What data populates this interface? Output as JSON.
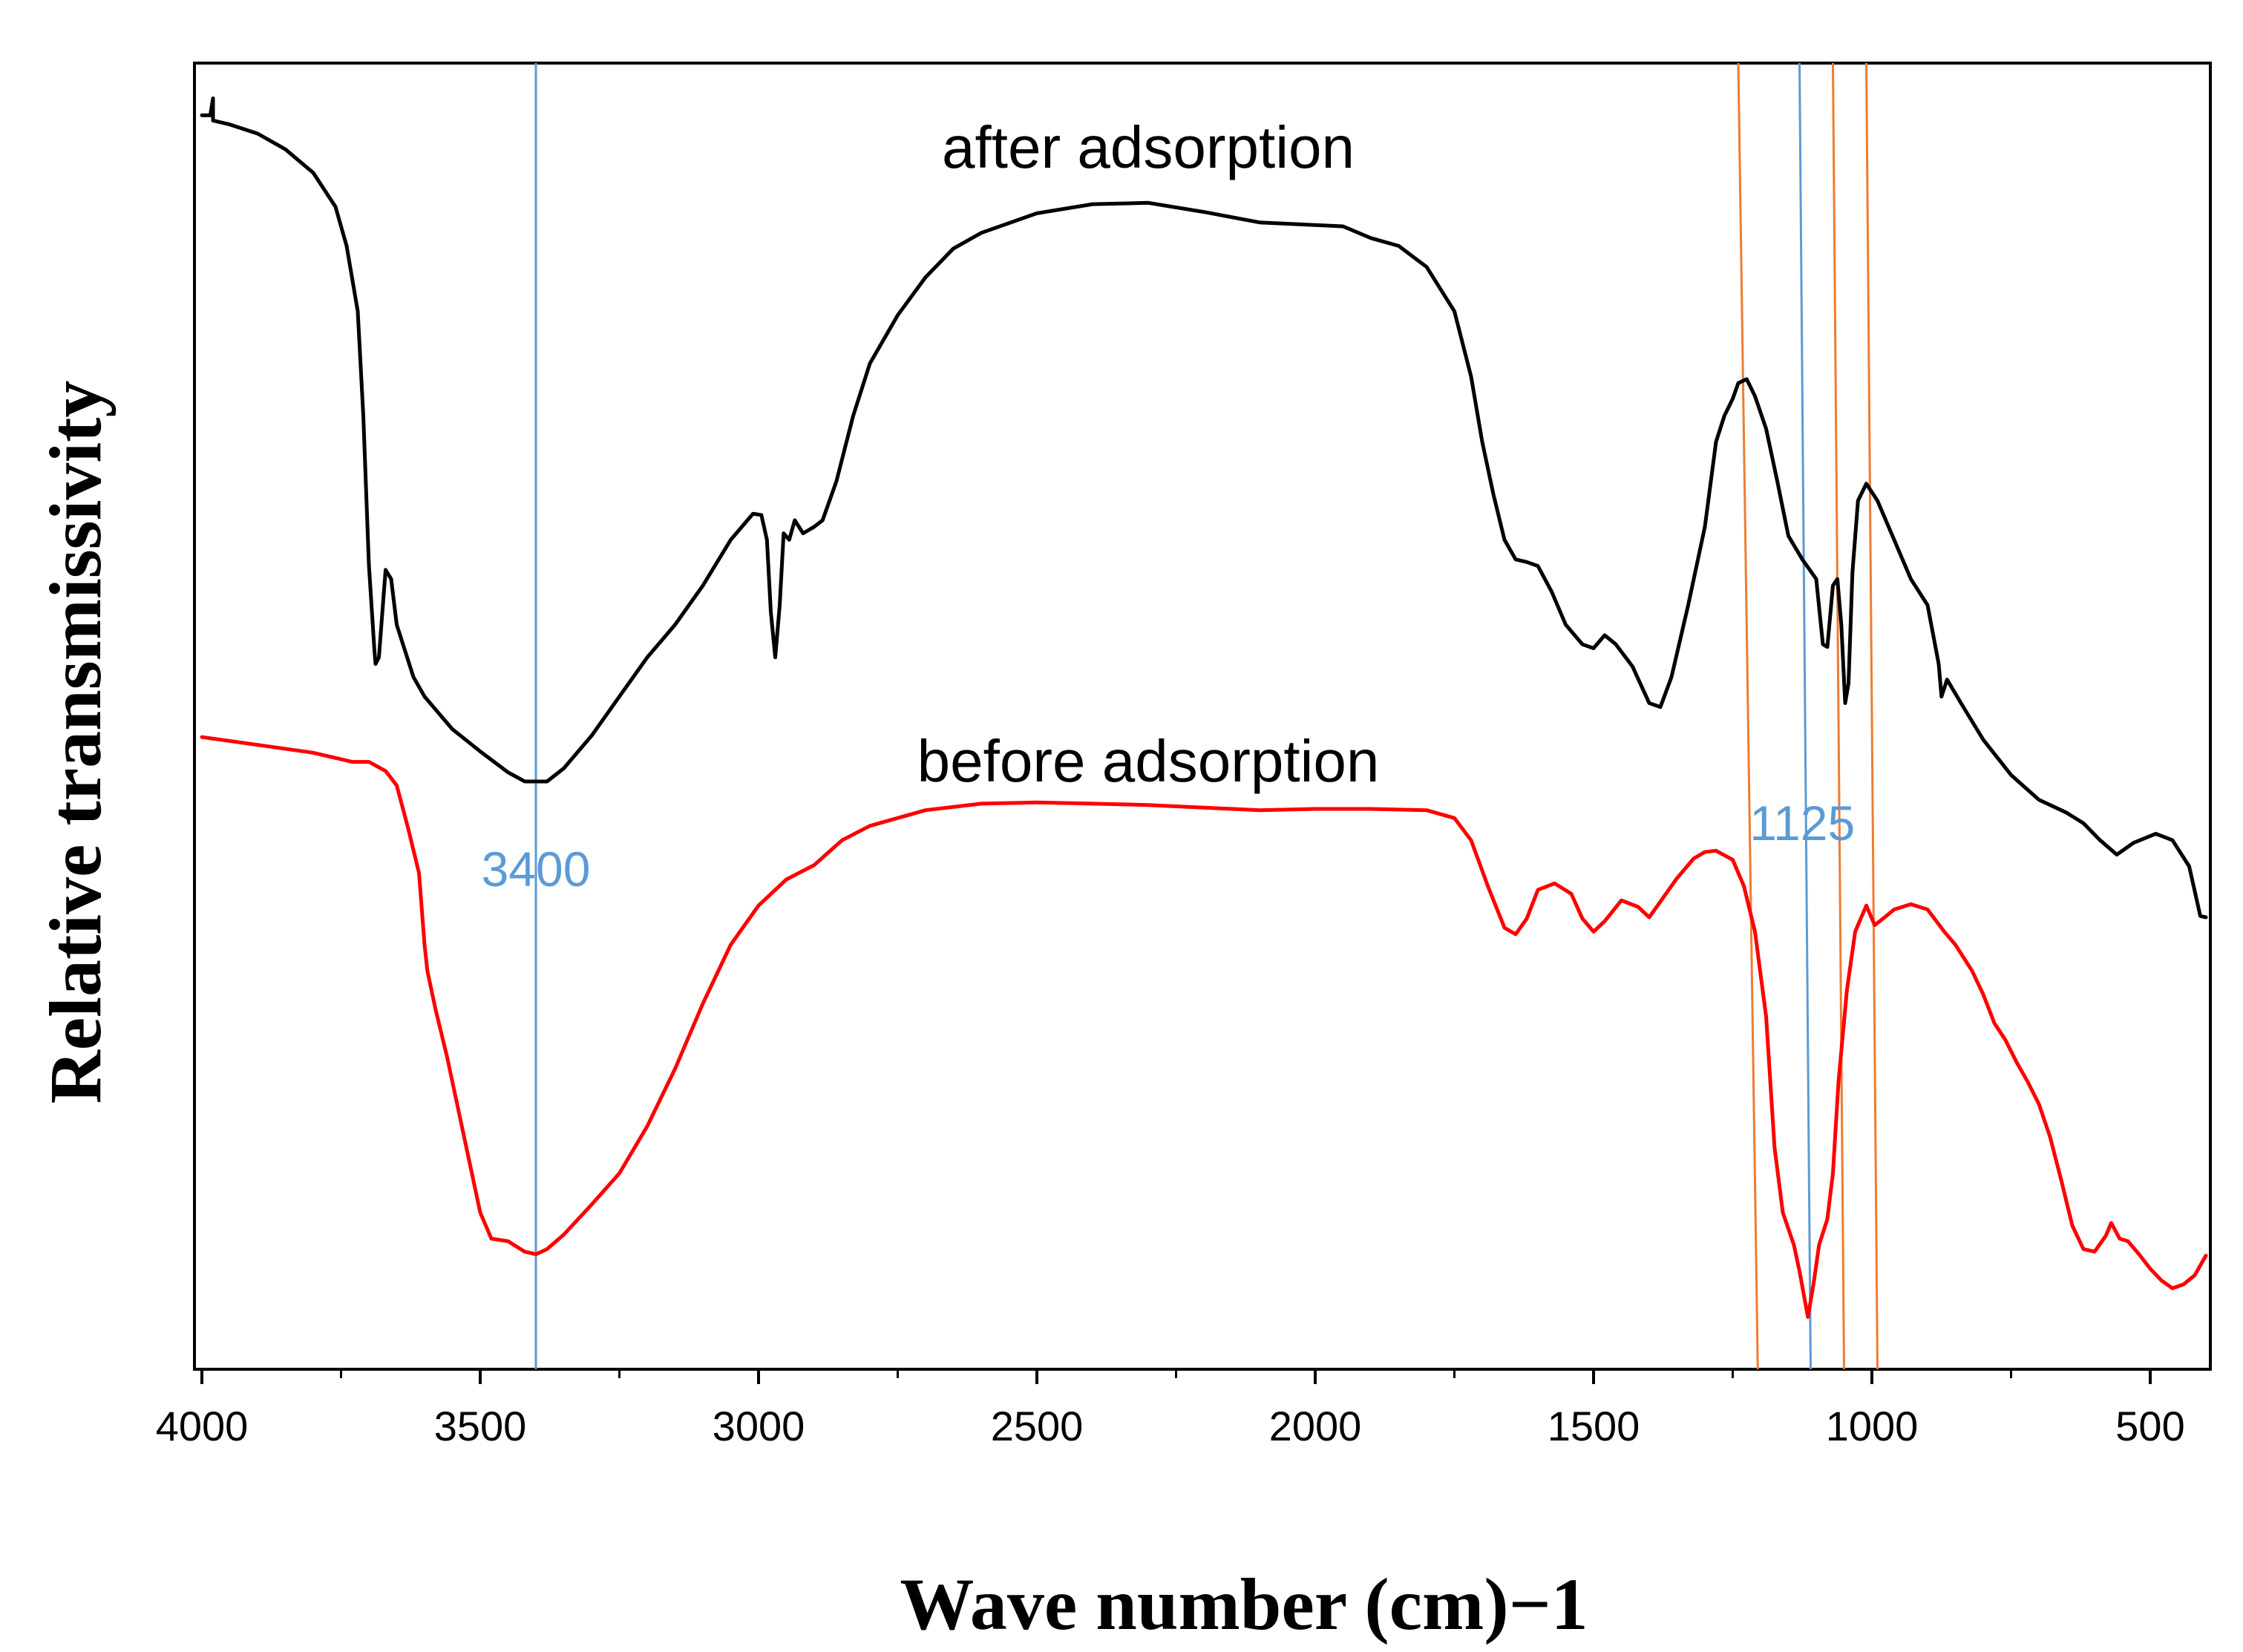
{
  "chart_data": {
    "type": "line",
    "title": "",
    "xlabel": "Wave number (cm)−1",
    "ylabel": "Relative transmissivity",
    "xlim": [
      4000,
      400
    ],
    "x_reversed": true,
    "ylim": [
      0,
      100
    ],
    "y_ticks_shown": false,
    "grid": false,
    "x_ticks": [
      4000,
      3500,
      3000,
      2500,
      2000,
      1500,
      1000,
      500
    ],
    "x_tick_labels": [
      "4000",
      "3500",
      "3000",
      "2500",
      "2000",
      "1500",
      "1000",
      "500"
    ],
    "x_minor_ticks": [
      3750,
      3250,
      2750,
      2250,
      1750,
      1250,
      750
    ],
    "series": [
      {
        "name": "after adsorption",
        "color": "#000000",
        "label": {
          "text": "after adsorption",
          "x": 2300,
          "y": 92
        },
        "points": [
          [
            4000,
            96
          ],
          [
            3985,
            96
          ],
          [
            3980,
            97.3
          ],
          [
            3980,
            95.6
          ],
          [
            3950,
            95.3
          ],
          [
            3900,
            94.6
          ],
          [
            3850,
            93.4
          ],
          [
            3800,
            91.6
          ],
          [
            3760,
            89
          ],
          [
            3740,
            86
          ],
          [
            3720,
            81
          ],
          [
            3710,
            73
          ],
          [
            3700,
            61.6
          ],
          [
            3690,
            55
          ],
          [
            3688,
            54
          ],
          [
            3682,
            54.5
          ],
          [
            3670,
            61.2
          ],
          [
            3660,
            60.5
          ],
          [
            3650,
            57
          ],
          [
            3620,
            53
          ],
          [
            3600,
            51.5
          ],
          [
            3550,
            49
          ],
          [
            3500,
            47.3
          ],
          [
            3450,
            45.7
          ],
          [
            3420,
            45
          ],
          [
            3380,
            45
          ],
          [
            3350,
            46
          ],
          [
            3300,
            48.5
          ],
          [
            3250,
            51.5
          ],
          [
            3200,
            54.5
          ],
          [
            3150,
            57
          ],
          [
            3100,
            60
          ],
          [
            3050,
            63.5
          ],
          [
            3010,
            65.5
          ],
          [
            2995,
            65.4
          ],
          [
            2985,
            63.5
          ],
          [
            2978,
            58
          ],
          [
            2970,
            54.5
          ],
          [
            2962,
            58.5
          ],
          [
            2955,
            64
          ],
          [
            2945,
            63.5
          ],
          [
            2935,
            65
          ],
          [
            2920,
            64
          ],
          [
            2900,
            64.5
          ],
          [
            2885,
            65
          ],
          [
            2860,
            68
          ],
          [
            2830,
            73
          ],
          [
            2800,
            77
          ],
          [
            2750,
            80.7
          ],
          [
            2700,
            83.6
          ],
          [
            2650,
            85.8
          ],
          [
            2600,
            87
          ],
          [
            2500,
            88.5
          ],
          [
            2400,
            89.2
          ],
          [
            2300,
            89.3
          ],
          [
            2200,
            88.6
          ],
          [
            2100,
            87.8
          ],
          [
            2000,
            87.6
          ],
          [
            1950,
            87.5
          ],
          [
            1900,
            86.6
          ],
          [
            1850,
            86
          ],
          [
            1800,
            84.4
          ],
          [
            1750,
            81
          ],
          [
            1720,
            76
          ],
          [
            1700,
            71
          ],
          [
            1680,
            67
          ],
          [
            1660,
            63.5
          ],
          [
            1640,
            62
          ],
          [
            1620,
            61.8
          ],
          [
            1600,
            61.5
          ],
          [
            1575,
            59.5
          ],
          [
            1550,
            57
          ],
          [
            1520,
            55.5
          ],
          [
            1500,
            55.2
          ],
          [
            1480,
            56.2
          ],
          [
            1460,
            55.5
          ],
          [
            1430,
            53.8
          ],
          [
            1400,
            51
          ],
          [
            1380,
            50.7
          ],
          [
            1360,
            53
          ],
          [
            1330,
            58.5
          ],
          [
            1300,
            64.5
          ],
          [
            1280,
            71
          ],
          [
            1265,
            73
          ],
          [
            1250,
            74.3
          ],
          [
            1240,
            75.5
          ],
          [
            1225,
            75.8
          ],
          [
            1210,
            74.5
          ],
          [
            1190,
            72
          ],
          [
            1170,
            68
          ],
          [
            1150,
            63.8
          ],
          [
            1125,
            62
          ],
          [
            1100,
            60.5
          ],
          [
            1088,
            55.5
          ],
          [
            1080,
            55.3
          ],
          [
            1070,
            60
          ],
          [
            1062,
            60.5
          ],
          [
            1055,
            57
          ],
          [
            1048,
            51
          ],
          [
            1042,
            52.5
          ],
          [
            1035,
            61
          ],
          [
            1025,
            66.5
          ],
          [
            1010,
            67.8
          ],
          [
            990,
            66.5
          ],
          [
            960,
            63.5
          ],
          [
            930,
            60.5
          ],
          [
            900,
            58.5
          ],
          [
            880,
            54
          ],
          [
            875,
            51.5
          ],
          [
            865,
            52.8
          ],
          [
            840,
            51
          ],
          [
            800,
            48.2
          ],
          [
            750,
            45.5
          ],
          [
            700,
            43.6
          ],
          [
            650,
            42.6
          ],
          [
            620,
            41.8
          ],
          [
            590,
            40.5
          ],
          [
            560,
            39.4
          ],
          [
            530,
            40.3
          ],
          [
            490,
            41
          ],
          [
            460,
            40.5
          ],
          [
            430,
            38.5
          ],
          [
            410,
            34.7
          ],
          [
            400,
            34.6
          ]
        ]
      },
      {
        "name": "before adsorption",
        "color": "#ff0000",
        "label": {
          "text": "before adsorption",
          "x": 2300,
          "y": 45
        },
        "points": [
          [
            4000,
            48.4
          ],
          [
            3900,
            47.8
          ],
          [
            3800,
            47.2
          ],
          [
            3730,
            46.5
          ],
          [
            3700,
            46.5
          ],
          [
            3670,
            45.8
          ],
          [
            3650,
            44.7
          ],
          [
            3630,
            41.5
          ],
          [
            3610,
            38
          ],
          [
            3600,
            32.5
          ],
          [
            3595,
            30.5
          ],
          [
            3580,
            27.5
          ],
          [
            3560,
            24
          ],
          [
            3540,
            20
          ],
          [
            3520,
            16
          ],
          [
            3500,
            12
          ],
          [
            3480,
            10
          ],
          [
            3450,
            9.8
          ],
          [
            3420,
            9
          ],
          [
            3400,
            8.8
          ],
          [
            3380,
            9.2
          ],
          [
            3350,
            10.3
          ],
          [
            3300,
            12.6
          ],
          [
            3250,
            15
          ],
          [
            3200,
            18.6
          ],
          [
            3150,
            23
          ],
          [
            3100,
            28
          ],
          [
            3050,
            32.5
          ],
          [
            3000,
            35.5
          ],
          [
            2950,
            37.5
          ],
          [
            2900,
            38.6
          ],
          [
            2850,
            40.5
          ],
          [
            2800,
            41.6
          ],
          [
            2700,
            42.8
          ],
          [
            2600,
            43.3
          ],
          [
            2500,
            43.4
          ],
          [
            2400,
            43.3
          ],
          [
            2300,
            43.2
          ],
          [
            2200,
            43
          ],
          [
            2100,
            42.8
          ],
          [
            2000,
            42.9
          ],
          [
            1900,
            42.9
          ],
          [
            1800,
            42.8
          ],
          [
            1750,
            42.2
          ],
          [
            1720,
            40.5
          ],
          [
            1690,
            37
          ],
          [
            1660,
            33.8
          ],
          [
            1640,
            33.3
          ],
          [
            1620,
            34.5
          ],
          [
            1600,
            36.7
          ],
          [
            1570,
            37.2
          ],
          [
            1540,
            36.4
          ],
          [
            1520,
            34.5
          ],
          [
            1500,
            33.5
          ],
          [
            1480,
            34.3
          ],
          [
            1450,
            35.9
          ],
          [
            1420,
            35.4
          ],
          [
            1400,
            34.6
          ],
          [
            1380,
            35.8
          ],
          [
            1350,
            37.6
          ],
          [
            1320,
            39.1
          ],
          [
            1300,
            39.6
          ],
          [
            1280,
            39.7
          ],
          [
            1250,
            39
          ],
          [
            1230,
            37
          ],
          [
            1210,
            33.5
          ],
          [
            1190,
            27
          ],
          [
            1175,
            17
          ],
          [
            1160,
            12
          ],
          [
            1140,
            9.5
          ],
          [
            1130,
            7.5
          ],
          [
            1115,
            4
          ],
          [
            1105,
            6.5
          ],
          [
            1095,
            9.5
          ],
          [
            1080,
            11.5
          ],
          [
            1070,
            15
          ],
          [
            1060,
            22
          ],
          [
            1045,
            29
          ],
          [
            1030,
            33.5
          ],
          [
            1010,
            35.5
          ],
          [
            995,
            34
          ],
          [
            980,
            34.5
          ],
          [
            960,
            35.2
          ],
          [
            930,
            35.6
          ],
          [
            900,
            35.2
          ],
          [
            870,
            33.5
          ],
          [
            850,
            32.5
          ],
          [
            820,
            30.5
          ],
          [
            800,
            28.7
          ],
          [
            780,
            26.5
          ],
          [
            760,
            25.2
          ],
          [
            740,
            23.5
          ],
          [
            720,
            22
          ],
          [
            700,
            20.3
          ],
          [
            680,
            17.8
          ],
          [
            660,
            14.5
          ],
          [
            640,
            11
          ],
          [
            620,
            9.2
          ],
          [
            600,
            9
          ],
          [
            580,
            10.2
          ],
          [
            570,
            11.2
          ],
          [
            555,
            10
          ],
          [
            540,
            9.8
          ],
          [
            520,
            8.8
          ],
          [
            500,
            7.7
          ],
          [
            480,
            6.8
          ],
          [
            460,
            6.2
          ],
          [
            440,
            6.5
          ],
          [
            420,
            7.2
          ],
          [
            400,
            8.7
          ]
        ]
      }
    ],
    "annotations": [
      {
        "type": "vline",
        "x": 3400,
        "y_range": [
          0,
          100
        ],
        "color": "#5b9bd5",
        "label": "3400",
        "label_x": 3400,
        "label_y": 37
      },
      {
        "type": "line",
        "x1": 1240,
        "y1": 100,
        "x2": 1205,
        "y2": 0,
        "color": "#ed7d31"
      },
      {
        "type": "line",
        "x1": 1130,
        "y1": 100,
        "x2": 1110,
        "y2": 0,
        "color": "#5b9bd5",
        "label": "1125",
        "label_x": 1125,
        "label_y": 40.5
      },
      {
        "type": "line",
        "x1": 1070,
        "y1": 100,
        "x2": 1050,
        "y2": 0,
        "color": "#ed7d31"
      },
      {
        "type": "line",
        "x1": 1010,
        "y1": 100,
        "x2": 990,
        "y2": 0,
        "color": "#ed7d31"
      }
    ]
  }
}
